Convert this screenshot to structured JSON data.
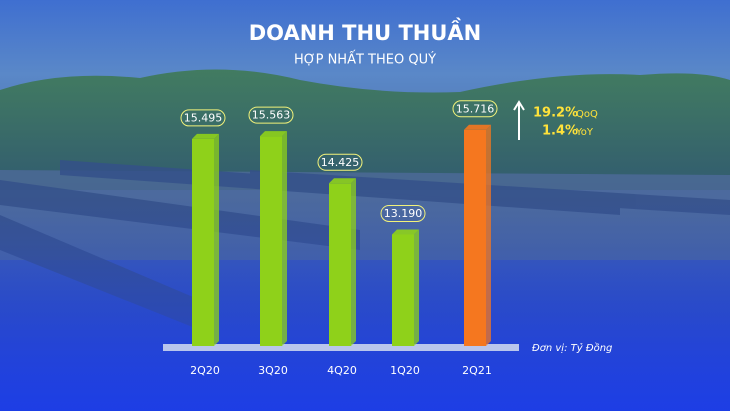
{
  "chart_data": {
    "type": "bar",
    "title": "DOANH THU THUẦN",
    "subtitle": "HỢP NHẤT THEO QUÝ",
    "categories": [
      "2Q20",
      "3Q20",
      "4Q20",
      "1Q20",
      "2Q21"
    ],
    "values": [
      15495,
      15563,
      14425,
      13190,
      15716
    ],
    "value_labels": [
      "15.495",
      "15.563",
      "14.425",
      "13.190",
      "15.716"
    ],
    "colors": [
      "#8fd11a",
      "#8fd11a",
      "#8fd11a",
      "#8fd11a",
      "#f5771f"
    ],
    "ylim": [
      10500,
      16000
    ],
    "unit_note": "Đơn vị: Tỷ Đồng",
    "growth": [
      {
        "value": "19.2%",
        "period": "QoQ"
      },
      {
        "value": "1.4%",
        "period": "YoY"
      }
    ]
  }
}
